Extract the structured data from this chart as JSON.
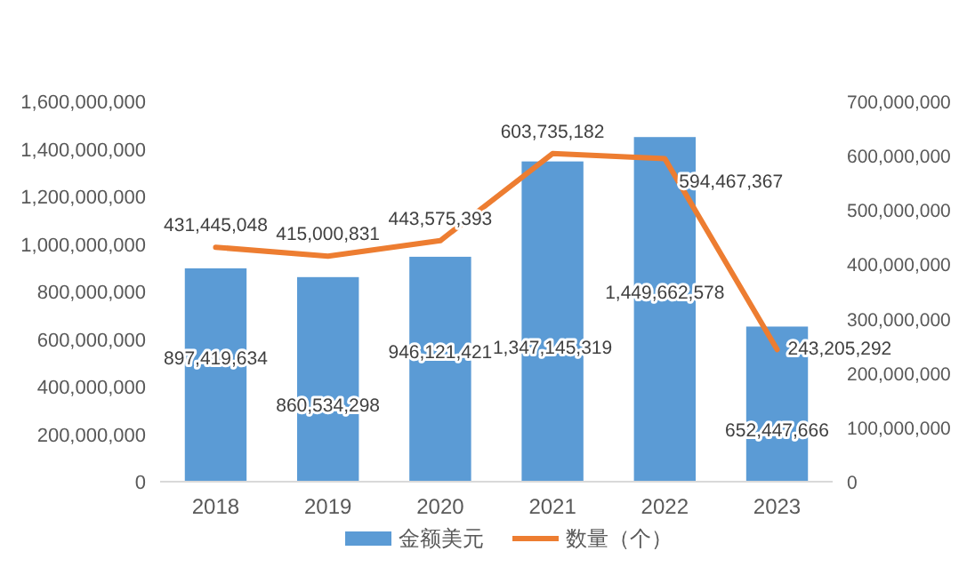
{
  "chart_data": {
    "type": "bar",
    "categories": [
      "2018",
      "2019",
      "2020",
      "2021",
      "2022",
      "2023"
    ],
    "series": [
      {
        "name": "金额美元",
        "color": "#5b9bd5",
        "values": [
          897419634,
          860534298,
          946121421,
          1347145319,
          1449662578,
          652447666
        ],
        "value_labels": [
          "897,419,634",
          "860,534,298",
          "946,121,421",
          "1,347,145,319",
          "1,449,662,578",
          "652,447,666"
        ]
      },
      {
        "name": "数量（个）",
        "type": "line",
        "axis": "y2",
        "color": "#ed7d31",
        "values": [
          431445048,
          415000831,
          443575393,
          603735182,
          594467367,
          243205292
        ],
        "value_labels": [
          "431,445,048",
          "415,000,831",
          "443,575,393",
          "603,735,182",
          "594,467,367",
          "243,205,292"
        ]
      }
    ],
    "ylim": [
      0,
      1600000000
    ],
    "yticks": [
      {
        "value": 0,
        "label": "0"
      },
      {
        "value": 200000000,
        "label": "200,000,000"
      },
      {
        "value": 400000000,
        "label": "400,000,000"
      },
      {
        "value": 600000000,
        "label": "600,000,000"
      },
      {
        "value": 800000000,
        "label": "800,000,000"
      },
      {
        "value": 1000000000,
        "label": "1,000,000,000"
      },
      {
        "value": 1200000000,
        "label": "1,200,000,000"
      },
      {
        "value": 1400000000,
        "label": "1,400,000,000"
      },
      {
        "value": 1600000000,
        "label": "1,600,000,000"
      }
    ],
    "y2lim": [
      0,
      700000000
    ],
    "y2ticks": [
      {
        "value": 0,
        "label": "0"
      },
      {
        "value": 100000000,
        "label": "100,000,000"
      },
      {
        "value": 200000000,
        "label": "200,000,000"
      },
      {
        "value": 300000000,
        "label": "300,000,000"
      },
      {
        "value": 400000000,
        "label": "400,000,000"
      },
      {
        "value": 500000000,
        "label": "500,000,000"
      },
      {
        "value": 600000000,
        "label": "600,000,000"
      },
      {
        "value": 700000000,
        "label": "700,000,000"
      }
    ],
    "grid": false,
    "legend": "bottom",
    "marker": "none"
  }
}
